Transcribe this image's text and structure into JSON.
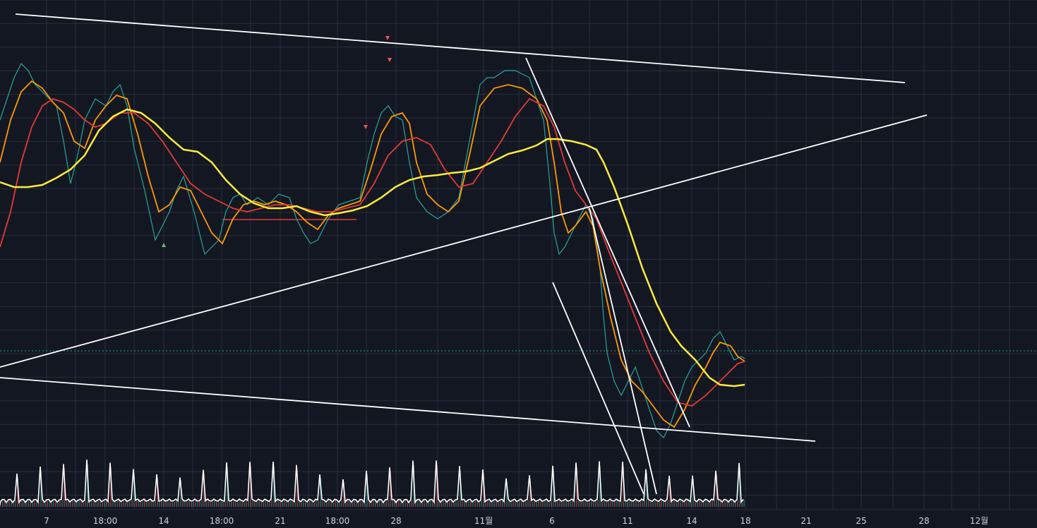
{
  "x_axis": {
    "labels": [
      "7",
      "18:00",
      "14",
      "18:00",
      "21",
      "18:00",
      "28",
      "11월",
      "6",
      "11",
      "14",
      "18",
      "21",
      "25",
      "28",
      "12월"
    ]
  }
}
